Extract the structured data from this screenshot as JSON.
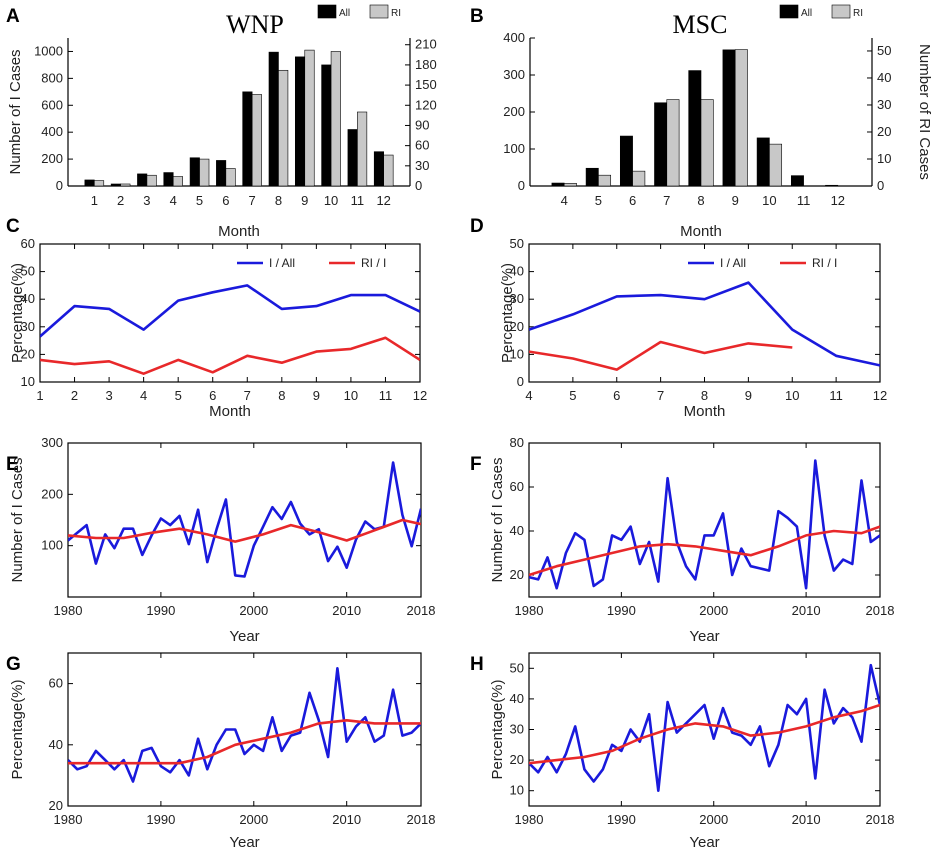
{
  "panels": [
    {
      "id": "A",
      "label": "A",
      "title": "WNP",
      "type": "bar",
      "xlabel": "Month",
      "ylabel": "Number of I Cases",
      "y2label": "",
      "categories": [
        "1",
        "2",
        "3",
        "4",
        "5",
        "6",
        "7",
        "8",
        "9",
        "10",
        "11",
        "12"
      ],
      "ylim": [
        0,
        1100
      ],
      "yticks": [
        0,
        200,
        400,
        600,
        800,
        1000
      ],
      "y2lim": [
        0,
        220
      ],
      "y2ticks": [
        0,
        30,
        60,
        90,
        120,
        150,
        180,
        210
      ],
      "series": [
        {
          "name": "All",
          "axis": "left",
          "color": "#000000",
          "values": [
            45,
            15,
            90,
            100,
            210,
            190,
            700,
            995,
            960,
            900,
            420,
            255
          ]
        },
        {
          "name": "RI",
          "axis": "right",
          "color": "#c8c8c8",
          "values": [
            8,
            3,
            16,
            14,
            40,
            26,
            136,
            172,
            202,
            200,
            110,
            46
          ]
        }
      ]
    },
    {
      "id": "B",
      "label": "B",
      "title": "MSC",
      "type": "bar",
      "xlabel": "Month",
      "ylabel": "",
      "y2label": "Number of RI Cases",
      "categories": [
        "4",
        "5",
        "6",
        "7",
        "8",
        "9",
        "10",
        "11",
        "12"
      ],
      "ylim": [
        0,
        400
      ],
      "yticks": [
        0,
        100,
        200,
        300,
        400
      ],
      "y2lim": [
        0,
        54.8
      ],
      "y2ticks": [
        0,
        10,
        20,
        30,
        40,
        50
      ],
      "series": [
        {
          "name": "All",
          "axis": "left",
          "color": "#000000",
          "values": [
            8,
            48,
            135,
            225,
            312,
            368,
            130,
            28,
            2
          ]
        },
        {
          "name": "RI",
          "axis": "right",
          "color": "#c8c8c8",
          "values": [
            1,
            4,
            5.5,
            32,
            32,
            50.5,
            15.5,
            0,
            0
          ]
        }
      ]
    },
    {
      "id": "C",
      "label": "C",
      "type": "line",
      "xlabel": "Month",
      "ylabel": "Percentage(%)",
      "xlim": [
        1,
        12
      ],
      "xticks": [
        1,
        2,
        3,
        4,
        5,
        6,
        7,
        8,
        9,
        10,
        11,
        12
      ],
      "ylim": [
        10,
        60
      ],
      "yticks": [
        10,
        20,
        30,
        40,
        50,
        60
      ],
      "legend": "top-right",
      "series": [
        {
          "name": "I / All",
          "color": "#1a1adc",
          "x": [
            1,
            2,
            3,
            4,
            5,
            6,
            7,
            8,
            9,
            10,
            11,
            12
          ],
          "values": [
            26.5,
            37.5,
            36.5,
            29,
            39.5,
            42.5,
            45,
            36.5,
            37.5,
            41.5,
            41.5,
            35.5
          ]
        },
        {
          "name": "RI / I",
          "color": "#e8282a",
          "x": [
            1,
            2,
            3,
            4,
            5,
            6,
            7,
            8,
            9,
            10,
            11,
            12
          ],
          "values": [
            18,
            16.5,
            17.5,
            13,
            18,
            13.5,
            19.5,
            17,
            21,
            22,
            26,
            18
          ]
        }
      ]
    },
    {
      "id": "D",
      "label": "D",
      "type": "line",
      "xlabel": "Month",
      "ylabel": "Percentage(%)",
      "xlim": [
        4,
        12
      ],
      "xticks": [
        4,
        5,
        6,
        7,
        8,
        9,
        10,
        11,
        12
      ],
      "ylim": [
        0,
        50
      ],
      "yticks": [
        0,
        10,
        20,
        30,
        40,
        50
      ],
      "legend": "top-right",
      "series": [
        {
          "name": "I / All",
          "color": "#1a1adc",
          "x": [
            4,
            5,
            6,
            7,
            8,
            9,
            10,
            11,
            12
          ],
          "values": [
            19,
            24.5,
            31,
            31.5,
            30,
            36,
            19,
            9.5,
            6
          ]
        },
        {
          "name": "RI / I",
          "color": "#e8282a",
          "x": [
            4,
            5,
            6,
            7,
            8,
            9,
            10
          ],
          "values": [
            11,
            8.5,
            4.5,
            14.5,
            10.5,
            14,
            12.5
          ]
        }
      ]
    },
    {
      "id": "E",
      "label": "E",
      "type": "line",
      "xlabel": "Year",
      "ylabel": "Number of I Cases",
      "xlim": [
        1980,
        2018
      ],
      "xticks": [
        1980,
        1990,
        2000,
        2010,
        2018
      ],
      "ylim": [
        0,
        300
      ],
      "yticks": [
        100,
        200,
        300
      ],
      "series": [
        {
          "name": "annual",
          "color": "#1a1adc",
          "x": [
            1980,
            1981,
            1982,
            1983,
            1984,
            1985,
            1986,
            1987,
            1988,
            1989,
            1990,
            1991,
            1992,
            1993,
            1994,
            1995,
            1996,
            1997,
            1998,
            1999,
            2000,
            2001,
            2002,
            2003,
            2004,
            2005,
            2006,
            2007,
            2008,
            2009,
            2010,
            2011,
            2012,
            2013,
            2014,
            2015,
            2016,
            2017,
            2018
          ],
          "values": [
            110,
            125,
            140,
            65,
            122,
            95,
            133,
            133,
            82,
            120,
            153,
            140,
            158,
            103,
            170,
            68,
            132,
            190,
            42,
            40,
            100,
            137,
            175,
            152,
            185,
            143,
            122,
            132,
            70,
            98,
            57,
            112,
            147,
            132,
            137,
            262,
            160,
            99,
            172
          ]
        },
        {
          "name": "smoothed",
          "color": "#e8282a",
          "x": [
            1980,
            1983,
            1986,
            1989,
            1992,
            1995,
            1998,
            2001,
            2004,
            2007,
            2010,
            2013,
            2016,
            2018
          ],
          "values": [
            120,
            115,
            115,
            125,
            133,
            122,
            108,
            122,
            140,
            126,
            110,
            130,
            150,
            142
          ]
        }
      ]
    },
    {
      "id": "F",
      "label": "F",
      "type": "line",
      "xlabel": "Year",
      "ylabel": "Number of I Cases",
      "xlim": [
        1980,
        2018
      ],
      "xticks": [
        1980,
        1990,
        2000,
        2010,
        2018
      ],
      "ylim": [
        10,
        80
      ],
      "yticks": [
        20,
        40,
        60,
        80
      ],
      "series": [
        {
          "name": "annual",
          "color": "#1a1adc",
          "x": [
            1980,
            1981,
            1982,
            1983,
            1984,
            1985,
            1986,
            1987,
            1988,
            1989,
            1990,
            1991,
            1992,
            1993,
            1994,
            1995,
            1996,
            1997,
            1998,
            1999,
            2000,
            2001,
            2002,
            2003,
            2004,
            2005,
            2006,
            2007,
            2008,
            2009,
            2010,
            2011,
            2012,
            2013,
            2014,
            2015,
            2016,
            2017,
            2018
          ],
          "values": [
            19,
            18,
            28,
            14,
            30,
            39,
            36,
            15,
            18,
            38,
            36,
            42,
            25,
            35,
            17,
            64,
            35,
            24,
            18,
            38,
            38,
            48,
            20,
            32,
            24,
            23,
            22,
            49,
            46,
            42,
            14,
            72,
            38,
            22,
            27,
            25,
            63,
            35,
            38
          ]
        },
        {
          "name": "smoothed",
          "color": "#e8282a",
          "x": [
            1980,
            1983,
            1986,
            1989,
            1992,
            1995,
            1998,
            2001,
            2004,
            2007,
            2010,
            2013,
            2016,
            2018
          ],
          "values": [
            20,
            24,
            27,
            30,
            33,
            34,
            33,
            31,
            29,
            33,
            38,
            40,
            39,
            42
          ]
        }
      ]
    },
    {
      "id": "G",
      "label": "G",
      "type": "line",
      "xlabel": "Year",
      "ylabel": "Percentage(%)",
      "xlim": [
        1980,
        2018
      ],
      "xticks": [
        1980,
        1990,
        2000,
        2010,
        2018
      ],
      "ylim": [
        20,
        70
      ],
      "yticks": [
        20,
        40,
        60
      ],
      "series": [
        {
          "name": "annual",
          "color": "#1a1adc",
          "x": [
            1980,
            1981,
            1982,
            1983,
            1984,
            1985,
            1986,
            1987,
            1988,
            1989,
            1990,
            1991,
            1992,
            1993,
            1994,
            1995,
            1996,
            1997,
            1998,
            1999,
            2000,
            2001,
            2002,
            2003,
            2004,
            2005,
            2006,
            2007,
            2008,
            2009,
            2010,
            2011,
            2012,
            2013,
            2014,
            2015,
            2016,
            2017,
            2018
          ],
          "values": [
            35,
            32,
            33,
            38,
            35,
            32,
            35,
            28,
            38,
            39,
            33,
            31,
            35,
            30,
            42,
            32,
            40,
            45,
            45,
            37,
            40,
            38,
            49,
            38,
            43,
            44,
            57,
            48,
            36,
            65,
            41,
            46,
            49,
            41,
            43,
            58,
            43,
            44,
            47
          ]
        },
        {
          "name": "smoothed",
          "color": "#e8282a",
          "x": [
            1980,
            1983,
            1986,
            1989,
            1992,
            1995,
            1998,
            2001,
            2004,
            2007,
            2010,
            2013,
            2016,
            2018
          ],
          "values": [
            34,
            34,
            34,
            34,
            34,
            36,
            40,
            42,
            44,
            47,
            48,
            47,
            47,
            47
          ]
        }
      ]
    },
    {
      "id": "H",
      "label": "H",
      "type": "line",
      "xlabel": "Year",
      "ylabel": "Percentage(%)",
      "xlim": [
        1980,
        2018
      ],
      "xticks": [
        1980,
        1990,
        2000,
        2010,
        2018
      ],
      "ylim": [
        5,
        55
      ],
      "yticks": [
        10,
        20,
        30,
        40,
        50
      ],
      "series": [
        {
          "name": "annual",
          "color": "#1a1adc",
          "x": [
            1980,
            1981,
            1982,
            1983,
            1984,
            1985,
            1986,
            1987,
            1988,
            1989,
            1990,
            1991,
            1992,
            1993,
            1994,
            1995,
            1996,
            1997,
            1998,
            1999,
            2000,
            2001,
            2002,
            2003,
            2004,
            2005,
            2006,
            2007,
            2008,
            2009,
            2010,
            2011,
            2012,
            2013,
            2014,
            2015,
            2016,
            2017,
            2018
          ],
          "values": [
            19,
            16,
            21,
            16,
            22,
            31,
            17,
            13,
            17,
            25,
            23,
            30,
            26,
            35,
            10,
            39,
            29,
            32,
            35,
            38,
            27,
            37,
            29,
            28,
            25,
            31,
            18,
            25,
            38,
            35,
            40,
            14,
            43,
            32,
            37,
            34,
            26,
            51,
            38
          ]
        },
        {
          "name": "smoothed",
          "color": "#e8282a",
          "x": [
            1980,
            1983,
            1986,
            1989,
            1992,
            1995,
            1998,
            2001,
            2004,
            2007,
            2010,
            2013,
            2016,
            2018
          ],
          "values": [
            19,
            20,
            21,
            23,
            27,
            30,
            32,
            31,
            28,
            29,
            31,
            34,
            36,
            38
          ]
        }
      ]
    }
  ]
}
